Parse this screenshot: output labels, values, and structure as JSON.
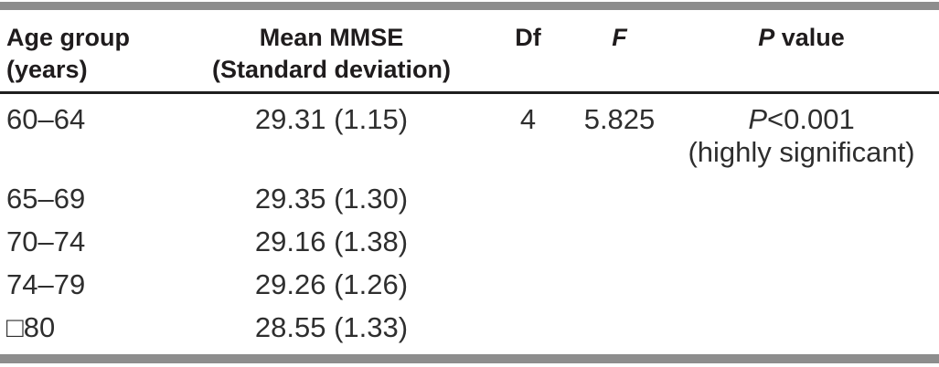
{
  "header": {
    "col1_line1": "Age group",
    "col1_line2": "(years)",
    "col2_line1": "Mean MMSE",
    "col2_line2": "(Standard deviation)",
    "col3": "Df",
    "col4_italic": "F",
    "col5_italic": "P",
    "col5_rest": " value"
  },
  "rows": [
    {
      "age": "60–64",
      "mmse": "29.31 (1.15)",
      "df": "4",
      "f": "5.825",
      "p_italic": "P",
      "p_rest": "<0.001",
      "p_line2": "(highly significant)"
    },
    {
      "age": "65–69",
      "mmse": "29.35 (1.30)"
    },
    {
      "age": "70–74",
      "mmse": "29.16 (1.38)"
    },
    {
      "age": "74–79",
      "mmse": "29.26 (1.26)"
    },
    {
      "age": "□80",
      "mmse": "28.55 (1.33)"
    }
  ],
  "colors": {
    "rule_thick": "#8d8d8d",
    "rule_thin": "#1f1f1f",
    "text": "#2e2e2e"
  }
}
